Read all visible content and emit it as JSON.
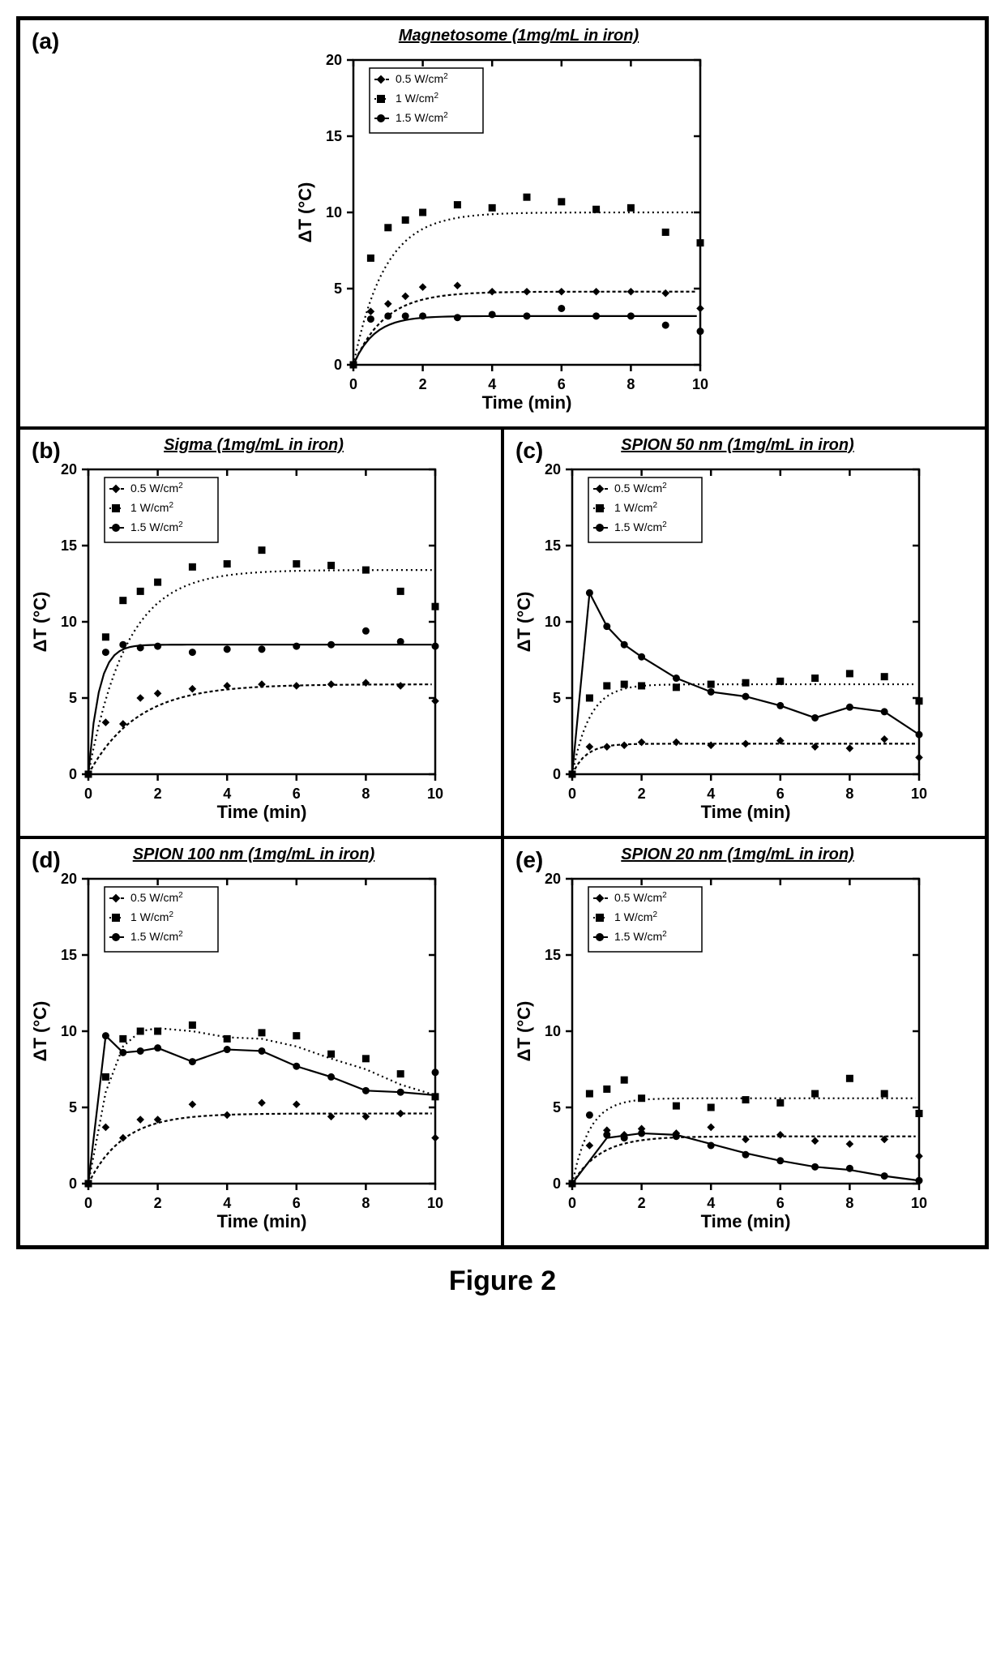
{
  "caption": "Figure 2",
  "global": {
    "xlabel": "Time (min)",
    "ylabel": "ΔT (°C)",
    "xlim": [
      0,
      10
    ],
    "ylim": [
      0,
      20
    ],
    "xtick_step": 2,
    "ytick_step": 5,
    "axis_fontsize": 22,
    "tick_fontsize": 18,
    "label_fontweight": "bold",
    "axis_color": "#000000",
    "background_color": "#ffffff",
    "grid": false,
    "marker_size": 8,
    "line_width": 2.2,
    "color": "#000000",
    "legend_border": "#000000",
    "legend_fontsize": 14,
    "series_defs": [
      {
        "key": "s05",
        "label": "0.5 W/cm",
        "sup": "2",
        "marker": "diamond",
        "dash": "4,3"
      },
      {
        "key": "s10",
        "label": "1 W/cm",
        "sup": "2",
        "marker": "square",
        "dash": "2,4"
      },
      {
        "key": "s15",
        "label": "1.5 W/cm",
        "sup": "2",
        "marker": "circle",
        "dash": "none"
      }
    ]
  },
  "panels": [
    {
      "id": "a",
      "label": "(a)",
      "title": "Magnetosome (1mg/mL in iron)",
      "x": [
        0,
        0.5,
        1,
        1.5,
        2,
        3,
        4,
        5,
        6,
        7,
        8,
        9,
        10
      ],
      "series": {
        "s05": {
          "y": [
            0,
            3.5,
            4.0,
            4.5,
            5.1,
            5.2,
            4.8,
            4.8,
            4.8,
            4.8,
            4.8,
            4.7,
            3.7
          ],
          "fit_plateau": 4.8,
          "fit_rise": 0.9
        },
        "s10": {
          "y": [
            0,
            7.0,
            9.0,
            9.5,
            10.0,
            10.5,
            10.3,
            11.0,
            10.7,
            10.2,
            10.3,
            8.7,
            8.0
          ],
          "fit_plateau": 10.0,
          "fit_rise": 0.9
        },
        "s15": {
          "y": [
            0,
            3.0,
            3.2,
            3.2,
            3.2,
            3.1,
            3.3,
            3.2,
            3.7,
            3.2,
            3.2,
            2.6,
            2.2
          ],
          "fit_plateau": 3.2,
          "fit_rise": 0.6
        }
      }
    },
    {
      "id": "b",
      "label": "(b)",
      "title": "Sigma (1mg/mL in iron)",
      "x": [
        0,
        0.5,
        1,
        1.5,
        2,
        3,
        4,
        5,
        6,
        7,
        8,
        9,
        10
      ],
      "series": {
        "s05": {
          "y": [
            0,
            3.4,
            3.3,
            5.0,
            5.3,
            5.6,
            5.8,
            5.9,
            5.8,
            5.9,
            6.0,
            5.8,
            4.8
          ],
          "fit_plateau": 5.9,
          "fit_rise": 1.4
        },
        "s10": {
          "y": [
            0,
            9.0,
            11.4,
            12.0,
            12.6,
            13.6,
            13.8,
            14.7,
            13.8,
            13.7,
            13.4,
            12.0,
            11.0
          ],
          "fit_plateau": 13.4,
          "fit_rise": 1.1
        },
        "s15": {
          "y": [
            0,
            8.0,
            8.5,
            8.3,
            8.4,
            8.0,
            8.2,
            8.2,
            8.4,
            8.5,
            9.4,
            8.7,
            8.4
          ],
          "fit_plateau": 8.5,
          "fit_rise": 0.3
        }
      }
    },
    {
      "id": "c",
      "label": "(c)",
      "title": "SPION 50 nm (1mg/mL in iron)",
      "x": [
        0,
        0.5,
        1,
        1.5,
        2,
        3,
        4,
        5,
        6,
        7,
        8,
        9,
        10
      ],
      "series": {
        "s05": {
          "y": [
            0,
            1.8,
            1.8,
            1.9,
            2.1,
            2.1,
            1.9,
            2.0,
            2.2,
            1.8,
            1.7,
            2.3,
            1.1
          ],
          "fit_plateau": 2.0,
          "fit_rise": 0.4
        },
        "s10": {
          "y": [
            0,
            5.0,
            5.8,
            5.9,
            5.8,
            5.7,
            5.9,
            6.0,
            6.1,
            6.3,
            6.6,
            6.4,
            4.8
          ],
          "fit_plateau": 5.9,
          "fit_rise": 0.5
        },
        "s15": {
          "y": [
            0,
            11.9,
            9.7,
            8.5,
            7.7,
            6.3,
            5.4,
            5.1,
            4.5,
            3.7,
            4.4,
            4.1,
            2.6
          ],
          "custom_fit": [
            [
              0,
              0
            ],
            [
              0.5,
              11.9
            ],
            [
              1,
              9.7
            ],
            [
              1.5,
              8.5
            ],
            [
              2,
              7.7
            ],
            [
              3,
              6.3
            ],
            [
              4,
              5.4
            ],
            [
              5,
              5.1
            ],
            [
              6,
              4.5
            ],
            [
              7,
              3.7
            ],
            [
              8,
              4.4
            ],
            [
              9,
              4.1
            ],
            [
              10,
              2.6
            ]
          ]
        }
      }
    },
    {
      "id": "d",
      "label": "(d)",
      "title": "SPION 100 nm (1mg/mL in iron)",
      "x": [
        0,
        0.5,
        1,
        1.5,
        2,
        3,
        4,
        5,
        6,
        7,
        8,
        9,
        10
      ],
      "series": {
        "s05": {
          "y": [
            0,
            3.7,
            3.0,
            4.2,
            4.2,
            5.2,
            4.5,
            5.3,
            5.2,
            4.4,
            4.4,
            4.6,
            3.0
          ],
          "fit_plateau": 4.6,
          "fit_rise": 1.0
        },
        "s10": {
          "y": [
            0,
            7.0,
            9.5,
            10.0,
            10.0,
            10.4,
            9.5,
            9.9,
            9.7,
            8.5,
            8.2,
            7.2,
            5.7
          ],
          "custom_fit": [
            [
              0,
              0
            ],
            [
              0.5,
              6.0
            ],
            [
              1,
              9.0
            ],
            [
              1.5,
              10.0
            ],
            [
              2,
              10.2
            ],
            [
              3,
              10.0
            ],
            [
              4,
              9.6
            ],
            [
              5,
              9.5
            ],
            [
              6,
              9.0
            ],
            [
              7,
              8.2
            ],
            [
              8,
              7.5
            ],
            [
              9,
              6.5
            ],
            [
              10,
              5.8
            ]
          ]
        },
        "s15": {
          "y": [
            0,
            9.7,
            8.6,
            8.7,
            8.9,
            8.0,
            8.8,
            8.7,
            7.7,
            7.0,
            6.1,
            6.0,
            7.3
          ],
          "custom_fit": [
            [
              0,
              0
            ],
            [
              0.5,
              9.7
            ],
            [
              1,
              8.6
            ],
            [
              1.5,
              8.7
            ],
            [
              2,
              8.9
            ],
            [
              3,
              8.0
            ],
            [
              4,
              8.8
            ],
            [
              5,
              8.7
            ],
            [
              6,
              7.7
            ],
            [
              7,
              7.0
            ],
            [
              8,
              6.1
            ],
            [
              9,
              6.0
            ],
            [
              10,
              5.8
            ]
          ]
        }
      }
    },
    {
      "id": "e",
      "label": "(e)",
      "title": "SPION 20 nm (1mg/mL in iron)",
      "x": [
        0,
        0.5,
        1,
        1.5,
        2,
        3,
        4,
        5,
        6,
        7,
        8,
        9,
        10
      ],
      "series": {
        "s05": {
          "y": [
            0,
            2.5,
            3.5,
            3.2,
            3.6,
            3.3,
            3.7,
            2.9,
            3.2,
            2.8,
            2.6,
            2.9,
            1.8
          ],
          "fit_plateau": 3.1,
          "fit_rise": 0.8
        },
        "s10": {
          "y": [
            0,
            5.9,
            6.2,
            6.8,
            5.6,
            5.1,
            5.0,
            5.5,
            5.3,
            5.9,
            6.9,
            5.9,
            4.6
          ],
          "fit_plateau": 5.6,
          "fit_rise": 0.5
        },
        "s15": {
          "y": [
            0,
            4.5,
            3.2,
            3.0,
            3.3,
            3.1,
            2.5,
            1.9,
            1.5,
            1.1,
            1.0,
            0.5,
            0.2
          ],
          "custom_fit": [
            [
              0,
              0
            ],
            [
              1,
              3.0
            ],
            [
              2,
              3.3
            ],
            [
              3,
              3.2
            ],
            [
              4,
              2.6
            ],
            [
              5,
              2.0
            ],
            [
              6,
              1.5
            ],
            [
              7,
              1.1
            ],
            [
              8,
              0.9
            ],
            [
              9,
              0.5
            ],
            [
              10,
              0.2
            ]
          ]
        }
      }
    }
  ]
}
